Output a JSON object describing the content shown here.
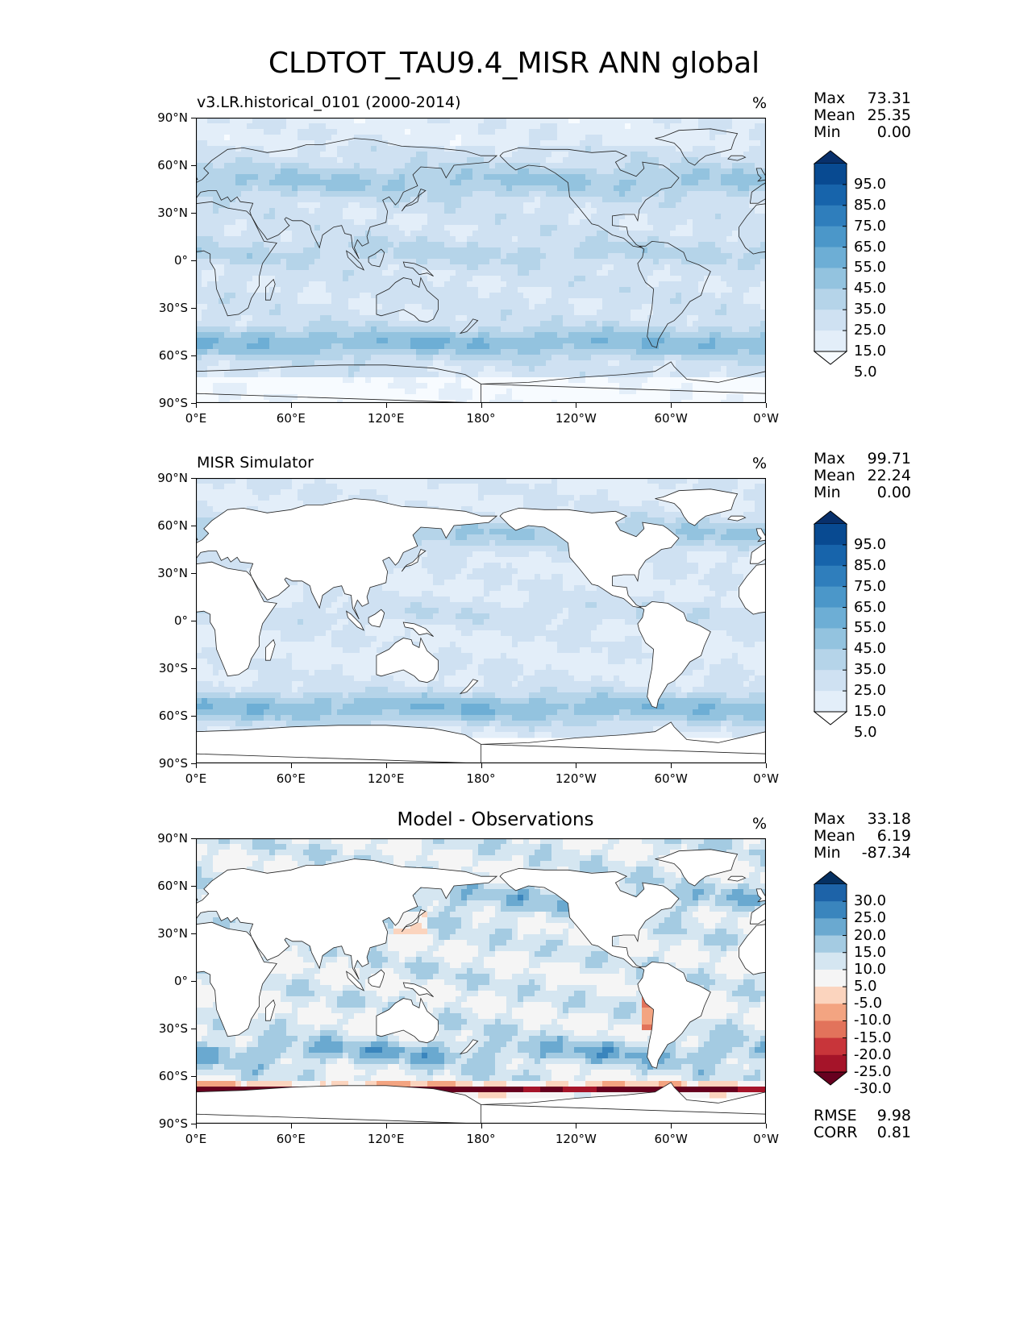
{
  "title": "CLDTOT_TAU9.4_MISR ANN global",
  "panels": [
    {
      "id": "model",
      "title": "v3.LR.historical_0101 (2000-2014)",
      "title_align": "left",
      "unit": "%",
      "stats": [
        {
          "name": "Max",
          "value": "73.31"
        },
        {
          "name": "Mean",
          "value": "25.35"
        },
        {
          "name": "Min",
          "value": "0.00"
        }
      ],
      "colorbar": {
        "levels": [
          "95.0",
          "85.0",
          "75.0",
          "65.0",
          "55.0",
          "45.0",
          "35.0",
          "25.0",
          "15.0",
          "5.0"
        ],
        "colors": [
          "#f7fbff",
          "#e3eef9",
          "#cfe1f2",
          "#b5d4e9",
          "#93c3df",
          "#6daed5",
          "#4b97c9",
          "#2f7ebc",
          "#1764ab",
          "#084a91",
          "#08306b"
        ]
      }
    },
    {
      "id": "obs",
      "title": "MISR Simulator",
      "title_align": "left",
      "unit": "%",
      "stats": [
        {
          "name": "Max",
          "value": "99.71"
        },
        {
          "name": "Mean",
          "value": "22.24"
        },
        {
          "name": "Min",
          "value": "0.00"
        }
      ],
      "colorbar": {
        "levels": [
          "95.0",
          "85.0",
          "75.0",
          "65.0",
          "55.0",
          "45.0",
          "35.0",
          "25.0",
          "15.0",
          "5.0"
        ],
        "colors": [
          "#ffffff",
          "#e3eef9",
          "#cfe1f2",
          "#b5d4e9",
          "#93c3df",
          "#6daed5",
          "#4b97c9",
          "#2f7ebc",
          "#1764ab",
          "#084a91",
          "#08306b"
        ]
      }
    },
    {
      "id": "diff",
      "title": "Model - Observations",
      "title_align": "center",
      "unit": "%",
      "stats": [
        {
          "name": "Max",
          "value": "33.18"
        },
        {
          "name": "Mean",
          "value": "6.19"
        },
        {
          "name": "Min",
          "value": "-87.34"
        }
      ],
      "colorbar": {
        "levels": [
          "30.0",
          "25.0",
          "20.0",
          "15.0",
          "10.0",
          "5.0",
          "-5.0",
          "-10.0",
          "-15.0",
          "-20.0",
          "-25.0",
          "-30.0"
        ],
        "colors": [
          "#67001f",
          "#a51429",
          "#c8353a",
          "#e2735b",
          "#f3a481",
          "#fbd4be",
          "#f5f5f5",
          "#d5e6f1",
          "#a4cbe2",
          "#6aa9d0",
          "#3a85bd",
          "#1d63a8",
          "#053061"
        ]
      },
      "metrics": [
        {
          "name": "RMSE",
          "value": "9.98"
        },
        {
          "name": "CORR",
          "value": "0.81"
        }
      ]
    }
  ],
  "axes": {
    "lat_ticks": [
      "90°N",
      "60°N",
      "30°N",
      "0°",
      "30°S",
      "60°S",
      "90°S"
    ],
    "lon_ticks": [
      "0°E",
      "60°E",
      "120°E",
      "180°",
      "120°W",
      "60°W",
      "0°W"
    ]
  }
}
